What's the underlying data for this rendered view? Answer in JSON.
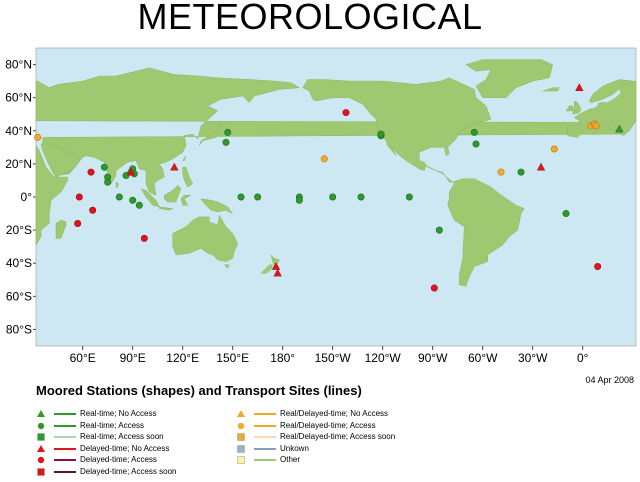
{
  "title": "METEOROLOGICAL",
  "subtitle": "Moored Stations (shapes) and Transport Sites (lines)",
  "date": "04 Apr 2008",
  "colors": {
    "ocean": "#cde8f2",
    "land": "#9fc870",
    "realtime": "#2e9a2e",
    "delayed": "#e0141e",
    "mixed": "#f0a830",
    "unknown": "#9ab0c8",
    "other": "#f8f4a0"
  },
  "lat_labels": [
    "80°N",
    "60°N",
    "40°N",
    "20°N",
    "0°",
    "20°S",
    "40°S",
    "60°S",
    "80°S"
  ],
  "lon_labels": [
    "60°E",
    "90°E",
    "120°E",
    "150°E",
    "180°",
    "150°W",
    "120°W",
    "90°W",
    "60°W",
    "30°W",
    "0°"
  ],
  "legend_left": [
    {
      "icon": "triangle-icon",
      "color": "#2e9a2e",
      "line": "#2e9a2e",
      "label": "Real-time; No Access"
    },
    {
      "icon": "circle-icon",
      "color": "#2e9a2e",
      "line": "#2e9a2e",
      "label": "Real-time; Access"
    },
    {
      "icon": "square-icon",
      "color": "#2e9a2e",
      "line": "#a8d8a8",
      "label": "Real-time; Access soon"
    },
    {
      "icon": "triangle-icon",
      "color": "#e0141e",
      "line": "#e0141e",
      "label": "Delayed-time; No Access"
    },
    {
      "icon": "circle-icon",
      "color": "#e0141e",
      "line": "#8a1040",
      "label": "Delayed-time; Access"
    },
    {
      "icon": "square-icon",
      "color": "#e0141e",
      "line": "#5a1030",
      "label": "Delayed-time; Access soon"
    }
  ],
  "legend_right": [
    {
      "icon": "triangle-icon",
      "color": "#f0a830",
      "line": "#f0a830",
      "label": "Real/Delayed-time; No Access"
    },
    {
      "icon": "circle-icon",
      "color": "#f0a830",
      "line": "#f0a830",
      "label": "Real/Delayed-time; Access"
    },
    {
      "icon": "square-icon",
      "color": "#f0a830",
      "line": "#f8d8b0",
      "label": "Real/Delayed-time; Access soon"
    },
    {
      "icon": "square-icon",
      "color": "#9ab0c8",
      "line": "#8aa0b8",
      "label": "Unkown"
    },
    {
      "icon": "square-icon",
      "color": "#f8f4a0",
      "line": "#9fc870",
      "label": "Other"
    }
  ],
  "stations": [
    {
      "lon": 73,
      "lat": 18,
      "s": "c",
      "c": "g"
    },
    {
      "lon": 75,
      "lat": 12,
      "s": "c",
      "c": "g"
    },
    {
      "lon": 75,
      "lat": 9,
      "s": "c",
      "c": "g"
    },
    {
      "lon": 86,
      "lat": 13,
      "s": "c",
      "c": "g"
    },
    {
      "lon": 89,
      "lat": 15,
      "s": "c",
      "c": "g"
    },
    {
      "lon": 90,
      "lat": 17,
      "s": "c",
      "c": "g"
    },
    {
      "lon": 91,
      "lat": 14,
      "s": "c",
      "c": "g"
    },
    {
      "lon": 82,
      "lat": 0,
      "s": "c",
      "c": "g"
    },
    {
      "lon": 90,
      "lat": -2,
      "s": "c",
      "c": "g"
    },
    {
      "lon": 94,
      "lat": -5,
      "s": "c",
      "c": "g"
    },
    {
      "lon": 146,
      "lat": 33,
      "s": "c",
      "c": "g"
    },
    {
      "lon": 147,
      "lat": 39,
      "s": "c",
      "c": "g"
    },
    {
      "lon": 155,
      "lat": 0,
      "s": "c",
      "c": "g"
    },
    {
      "lon": 165,
      "lat": 0,
      "s": "c",
      "c": "g"
    },
    {
      "lon": 190,
      "lat": 0,
      "s": "c",
      "c": "g"
    },
    {
      "lon": 190,
      "lat": -2,
      "s": "c",
      "c": "g"
    },
    {
      "lon": 210,
      "lat": 0,
      "s": "c",
      "c": "g"
    },
    {
      "lon": 227,
      "lat": 0,
      "s": "c",
      "c": "g"
    },
    {
      "lon": 239,
      "lat": 37,
      "s": "c",
      "c": "g"
    },
    {
      "lon": 239,
      "lat": 38,
      "s": "c",
      "c": "g"
    },
    {
      "lon": 256,
      "lat": 0,
      "s": "c",
      "c": "g"
    },
    {
      "lon": 274,
      "lat": -20,
      "s": "c",
      "c": "g"
    },
    {
      "lon": 295,
      "lat": 39,
      "s": "c",
      "c": "g"
    },
    {
      "lon": 296,
      "lat": 32,
      "s": "c",
      "c": "g"
    },
    {
      "lon": 323,
      "lat": 15,
      "s": "c",
      "c": "g"
    },
    {
      "lon": 350,
      "lat": -10,
      "s": "c",
      "c": "g"
    },
    {
      "lon": 22,
      "lat": 41,
      "s": "t",
      "c": "g"
    },
    {
      "lon": 58,
      "lat": 0,
      "s": "c",
      "c": "r"
    },
    {
      "lon": 57,
      "lat": -16,
      "s": "c",
      "c": "r"
    },
    {
      "lon": 65,
      "lat": 15,
      "s": "c",
      "c": "r"
    },
    {
      "lon": 66,
      "lat": -8,
      "s": "c",
      "c": "r"
    },
    {
      "lon": 89,
      "lat": 15,
      "s": "t",
      "c": "r"
    },
    {
      "lon": 97,
      "lat": -25,
      "s": "c",
      "c": "r"
    },
    {
      "lon": 115,
      "lat": 18,
      "s": "t",
      "c": "r"
    },
    {
      "lon": 176,
      "lat": -42,
      "s": "t",
      "c": "r"
    },
    {
      "lon": 177,
      "lat": -46,
      "s": "t",
      "c": "r"
    },
    {
      "lon": 218,
      "lat": 51,
      "s": "c",
      "c": "r"
    },
    {
      "lon": 271,
      "lat": -55,
      "s": "c",
      "c": "r"
    },
    {
      "lon": 335,
      "lat": 18,
      "s": "t",
      "c": "r"
    },
    {
      "lon": 358,
      "lat": 66,
      "s": "t",
      "c": "r"
    },
    {
      "lon": 9,
      "lat": -42,
      "s": "c",
      "c": "r"
    },
    {
      "lon": 205,
      "lat": 23,
      "s": "c",
      "c": "o"
    },
    {
      "lon": 311,
      "lat": 15,
      "s": "c",
      "c": "o"
    },
    {
      "lon": 343,
      "lat": 29,
      "s": "c",
      "c": "o"
    },
    {
      "lon": 5,
      "lat": 43,
      "s": "c",
      "c": "o"
    },
    {
      "lon": 7,
      "lat": 44,
      "s": "c",
      "c": "o"
    },
    {
      "lon": 8,
      "lat": 43,
      "s": "c",
      "c": "o"
    },
    {
      "lon": 33,
      "lat": 36,
      "s": "c",
      "c": "o"
    }
  ]
}
